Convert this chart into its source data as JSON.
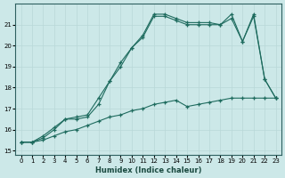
{
  "xlabel": "Humidex (Indice chaleur)",
  "background_color": "#cce8e8",
  "line_color": "#1e6b5e",
  "grid_color": "#b8d8d8",
  "xlim": [
    -0.5,
    23.5
  ],
  "ylim": [
    14.8,
    22.0
  ],
  "xticks": [
    0,
    1,
    2,
    3,
    4,
    5,
    6,
    7,
    8,
    9,
    10,
    11,
    12,
    13,
    14,
    15,
    16,
    17,
    18,
    19,
    20,
    21,
    22,
    23
  ],
  "yticks": [
    15,
    16,
    17,
    18,
    19,
    20,
    21
  ],
  "line1_x": [
    0,
    1,
    2,
    3,
    4,
    5,
    6,
    7,
    8,
    9,
    10,
    11,
    12,
    13,
    14,
    15,
    16,
    17,
    18,
    19,
    20,
    21,
    22,
    23
  ],
  "line1_y": [
    15.4,
    15.4,
    15.6,
    16.0,
    16.5,
    16.5,
    16.6,
    17.2,
    18.3,
    19.2,
    19.9,
    20.5,
    21.5,
    21.5,
    21.3,
    21.1,
    21.1,
    21.1,
    21.0,
    21.5,
    20.2,
    21.5,
    18.4,
    17.5
  ],
  "line2_x": [
    0,
    1,
    2,
    3,
    4,
    5,
    6,
    7,
    8,
    9,
    10,
    11,
    12,
    13,
    14,
    15,
    16,
    17,
    18,
    19,
    20,
    21,
    22,
    23
  ],
  "line2_y": [
    15.4,
    15.4,
    15.7,
    16.1,
    16.5,
    16.6,
    16.7,
    17.5,
    18.3,
    19.0,
    19.9,
    20.4,
    21.4,
    21.4,
    21.2,
    21.0,
    21.0,
    21.0,
    21.0,
    21.3,
    20.2,
    21.4,
    18.4,
    17.5
  ],
  "line3_x": [
    0,
    1,
    2,
    3,
    4,
    5,
    6,
    7,
    8,
    9,
    10,
    11,
    12,
    13,
    14,
    15,
    16,
    17,
    18,
    19,
    20,
    21,
    22,
    23
  ],
  "line3_y": [
    15.4,
    15.4,
    15.5,
    15.7,
    15.9,
    16.0,
    16.2,
    16.4,
    16.6,
    16.7,
    16.9,
    17.0,
    17.2,
    17.3,
    17.4,
    17.1,
    17.2,
    17.3,
    17.4,
    17.5,
    17.5,
    17.5,
    17.5,
    17.5
  ]
}
